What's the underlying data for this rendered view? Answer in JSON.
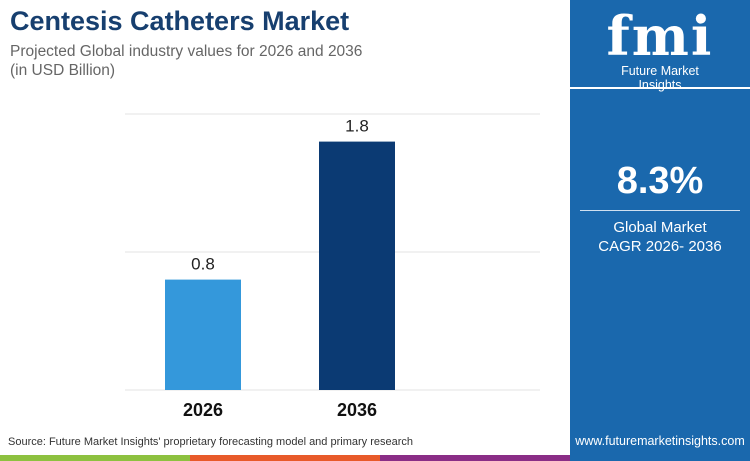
{
  "title": "Centesis Catheters Market",
  "subtitle_line1": "Projected Global industry values for 2026 and 2036",
  "subtitle_line2": "(in USD Billion)",
  "chart_data": {
    "type": "bar",
    "categories": [
      "2026",
      "2036"
    ],
    "values": [
      0.8,
      1.8
    ],
    "data_labels": [
      "0.8",
      "1.8"
    ],
    "ylim": [
      0,
      2
    ],
    "grid": true,
    "colors": [
      "#3498db",
      "#0b3a73"
    ]
  },
  "panel": {
    "logo_text": "fmi",
    "brand": "Future Market Insights",
    "cagr_value": "8.3%",
    "cagr_label_line1": "Global Market",
    "cagr_label_line2": "CAGR 2026- 2036",
    "website": "www.futuremarketinsights.com"
  },
  "source": "Source: Future Market Insights' proprietary forecasting model and primary research",
  "stripe_colors": [
    "#8dc13f",
    "#e85a2a",
    "#8a2d86"
  ]
}
